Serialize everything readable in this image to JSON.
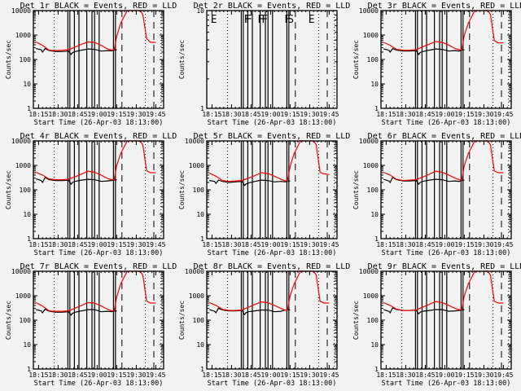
{
  "chart_data": [
    {
      "type": "line",
      "title": "Det 1r BLACK = Events, RED = LLD",
      "xlabel": "Start Time (26-Apr-03 18:13:00)",
      "ylabel": "Counts/sec",
      "yscale": "log",
      "ylim": [
        1,
        10000
      ],
      "ytick_labels": [
        "1",
        "10",
        "100",
        "1000",
        "10000"
      ],
      "xlim_minutes": [
        -2,
        98
      ],
      "xtick_labels": [
        "18:15",
        "18:30",
        "18:45",
        "19:00",
        "19:15",
        "19:30",
        "19:45"
      ],
      "markers": [
        "",
        "",
        "",
        "",
        "",
        "",
        "",
        "",
        "",
        "",
        "",
        "",
        ""
      ],
      "series": [
        {
          "name": "Events",
          "color": "#000000",
          "x": [
            0,
            4,
            5,
            7,
            10,
            15,
            20,
            25,
            27,
            28,
            30,
            35,
            40,
            45,
            50,
            55,
            58,
            60,
            62
          ],
          "y": [
            280,
            250,
            200,
            280,
            230,
            210,
            210,
            220,
            160,
            190,
            210,
            240,
            270,
            260,
            220,
            230,
            225,
            240,
            250
          ]
        },
        {
          "name": "LLD",
          "color": "#ff0000",
          "x": [
            0,
            5,
            10,
            15,
            20,
            25,
            30,
            35,
            40,
            45,
            50,
            55,
            58,
            60,
            62,
            65,
            70,
            75,
            78,
            80,
            82,
            85,
            88,
            92
          ],
          "y": [
            520,
            380,
            240,
            230,
            240,
            250,
            320,
            420,
            520,
            500,
            380,
            270,
            240,
            250,
            900,
            3000,
            10000,
            10000,
            10000,
            10000,
            7000,
            700,
            500,
            500
          ]
        }
      ]
    },
    {
      "type": "line",
      "title": "Det 2r BLACK = Events, RED = LLD",
      "xlabel": "Start Time (26-Apr-03 18:13:00)",
      "ylabel": "Counts/sec",
      "yscale": "log",
      "ylim": [
        1,
        10
      ],
      "ytick_labels": [
        "1",
        "10"
      ],
      "xlim_minutes": [
        -2,
        98
      ],
      "xtick_labels": [
        "18:15",
        "18:30",
        "18:45",
        "19:00",
        "19:15",
        "19:30",
        "19:45"
      ],
      "markers": [
        "E",
        "F",
        "F",
        "F",
        "F",
        "F",
        "S",
        "E"
      ],
      "series": []
    },
    {
      "type": "line",
      "title": "Det 3r BLACK = Events, RED = LLD",
      "xlabel": "Start Time (26-Apr-03 18:13:00)",
      "ylabel": "Counts/sec",
      "yscale": "log",
      "ylim": [
        1,
        10000
      ],
      "ytick_labels": [
        "1",
        "10",
        "100",
        "1000",
        "10000"
      ],
      "xlim_minutes": [
        -2,
        98
      ],
      "xtick_labels": [
        "18:15",
        "18:30",
        "18:45",
        "19:00",
        "19:15",
        "19:30",
        "19:45"
      ],
      "markers": [],
      "series": [
        {
          "name": "Events",
          "color": "#000000",
          "x": [
            0,
            4,
            5,
            7,
            10,
            15,
            20,
            25,
            27,
            28,
            30,
            35,
            40,
            45,
            50,
            55,
            58,
            60,
            62
          ],
          "y": [
            270,
            240,
            200,
            280,
            240,
            220,
            220,
            230,
            160,
            190,
            210,
            240,
            270,
            260,
            220,
            230,
            220,
            240,
            250
          ]
        },
        {
          "name": "LLD",
          "color": "#ff0000",
          "x": [
            0,
            5,
            10,
            15,
            20,
            25,
            30,
            35,
            40,
            45,
            50,
            55,
            58,
            60,
            62,
            65,
            70,
            75,
            78,
            80,
            82,
            85,
            88,
            92
          ],
          "y": [
            500,
            380,
            260,
            240,
            240,
            250,
            330,
            420,
            540,
            500,
            390,
            280,
            250,
            250,
            1000,
            3000,
            10000,
            10000,
            10000,
            10000,
            7000,
            600,
            480,
            480
          ]
        }
      ]
    },
    {
      "type": "line",
      "title": "Det 4r BLACK = Events, RED = LLD",
      "xlabel": "Start Time (26-Apr-03 18:13:00)",
      "ylabel": "Counts/sec",
      "yscale": "log",
      "ylim": [
        1,
        10000
      ],
      "ytick_labels": [
        "1",
        "10",
        "100",
        "1000",
        "10000"
      ],
      "xlim_minutes": [
        -2,
        98
      ],
      "xtick_labels": [
        "18:15",
        "18:30",
        "18:45",
        "19:00",
        "19:15",
        "19:30",
        "19:45"
      ],
      "markers": [],
      "series": [
        {
          "name": "Events",
          "color": "#000000",
          "x": [
            0,
            4,
            5,
            7,
            10,
            15,
            20,
            25,
            27,
            28,
            30,
            35,
            40,
            45,
            50,
            55,
            58,
            60,
            62
          ],
          "y": [
            280,
            240,
            200,
            320,
            260,
            240,
            240,
            250,
            170,
            200,
            220,
            250,
            270,
            260,
            220,
            230,
            240,
            250,
            260
          ]
        },
        {
          "name": "LLD",
          "color": "#ff0000",
          "x": [
            0,
            5,
            10,
            15,
            20,
            25,
            30,
            35,
            40,
            45,
            50,
            55,
            58,
            60,
            62,
            65,
            70,
            75,
            78,
            80,
            82,
            85,
            88,
            92
          ],
          "y": [
            520,
            400,
            280,
            260,
            260,
            270,
            340,
            440,
            580,
            520,
            400,
            290,
            260,
            260,
            1000,
            3000,
            10000,
            10000,
            10000,
            10000,
            7000,
            600,
            500,
            500
          ]
        }
      ]
    },
    {
      "type": "line",
      "title": "Det 5r BLACK = Events, RED = LLD",
      "xlabel": "Start Time (26-Apr-03 18:13:00)",
      "ylabel": "Counts/sec",
      "yscale": "log",
      "ylim": [
        1,
        10000
      ],
      "ytick_labels": [
        "1",
        "10",
        "100",
        "1000",
        "10000"
      ],
      "xlim_minutes": [
        -2,
        98
      ],
      "xtick_labels": [
        "18:15",
        "18:30",
        "18:45",
        "19:00",
        "19:15",
        "19:30",
        "19:45"
      ],
      "markers": [],
      "series": [
        {
          "name": "Events",
          "color": "#000000",
          "x": [
            0,
            4,
            5,
            7,
            10,
            15,
            20,
            25,
            27,
            28,
            30,
            35,
            40,
            45,
            50,
            55,
            58,
            60,
            62
          ],
          "y": [
            240,
            220,
            180,
            250,
            220,
            200,
            210,
            220,
            150,
            170,
            190,
            220,
            250,
            240,
            210,
            220,
            210,
            220,
            230
          ]
        },
        {
          "name": "LLD",
          "color": "#ff0000",
          "x": [
            0,
            5,
            10,
            15,
            20,
            25,
            30,
            35,
            40,
            45,
            50,
            55,
            58,
            60,
            62,
            65,
            70,
            75,
            78,
            80,
            82,
            85,
            88,
            92
          ],
          "y": [
            480,
            360,
            240,
            220,
            230,
            240,
            300,
            380,
            500,
            460,
            360,
            270,
            230,
            240,
            900,
            3000,
            10000,
            10000,
            10000,
            10000,
            7000,
            520,
            450,
            420
          ]
        }
      ]
    },
    {
      "type": "line",
      "title": "Det 6r BLACK = Events, RED = LLD",
      "xlabel": "Start Time (26-Apr-03 18:13:00)",
      "ylabel": "Counts/sec",
      "yscale": "log",
      "ylim": [
        1,
        10000
      ],
      "ytick_labels": [
        "1",
        "10",
        "100",
        "1000",
        "10000"
      ],
      "xlim_minutes": [
        -2,
        98
      ],
      "xtick_labels": [
        "18:15",
        "18:30",
        "18:45",
        "19:00",
        "19:15",
        "19:30",
        "19:45"
      ],
      "markers": [],
      "series": [
        {
          "name": "Events",
          "color": "#000000",
          "x": [
            0,
            4,
            5,
            7,
            10,
            15,
            20,
            25,
            27,
            28,
            30,
            35,
            40,
            45,
            50,
            55,
            58,
            60,
            62
          ],
          "y": [
            270,
            230,
            200,
            320,
            260,
            230,
            230,
            240,
            170,
            200,
            220,
            250,
            270,
            260,
            220,
            230,
            220,
            240,
            250
          ]
        },
        {
          "name": "LLD",
          "color": "#ff0000",
          "x": [
            0,
            5,
            10,
            15,
            20,
            25,
            30,
            35,
            40,
            45,
            50,
            55,
            58,
            60,
            62,
            65,
            70,
            75,
            78,
            80,
            82,
            85,
            88,
            92
          ],
          "y": [
            520,
            400,
            270,
            240,
            250,
            260,
            330,
            430,
            580,
            520,
            400,
            300,
            260,
            250,
            1000,
            3000,
            10000,
            10000,
            10000,
            10000,
            7000,
            600,
            500,
            500
          ]
        }
      ]
    },
    {
      "type": "line",
      "title": "Det 7r BLACK = Events, RED = LLD",
      "xlabel": "Start Time (26-Apr-03 18:13:00)",
      "ylabel": "Counts/sec",
      "yscale": "log",
      "ylim": [
        1,
        10000
      ],
      "ytick_labels": [
        "1",
        "10",
        "100",
        "1000",
        "10000"
      ],
      "xlim_minutes": [
        -2,
        98
      ],
      "xtick_labels": [
        "18:15",
        "18:30",
        "18:45",
        "19:00",
        "19:15",
        "19:30",
        "19:45"
      ],
      "markers": [],
      "series": [
        {
          "name": "Events",
          "color": "#000000",
          "x": [
            0,
            4,
            5,
            7,
            10,
            15,
            20,
            25,
            27,
            28,
            30,
            35,
            40,
            45,
            50,
            55,
            58,
            60,
            62
          ],
          "y": [
            270,
            240,
            200,
            280,
            230,
            210,
            210,
            220,
            160,
            190,
            210,
            240,
            270,
            270,
            220,
            230,
            220,
            230,
            240
          ]
        },
        {
          "name": "LLD",
          "color": "#ff0000",
          "x": [
            0,
            5,
            10,
            15,
            20,
            25,
            30,
            35,
            40,
            45,
            50,
            55,
            58,
            60,
            62,
            65,
            70,
            75,
            78,
            80,
            82,
            85,
            88,
            92
          ],
          "y": [
            520,
            380,
            240,
            230,
            230,
            240,
            310,
            400,
            520,
            500,
            380,
            280,
            240,
            240,
            900,
            3000,
            10000,
            10000,
            10000,
            10000,
            7000,
            600,
            500,
            500
          ]
        }
      ]
    },
    {
      "type": "line",
      "title": "Det 8r BLACK = Events, RED = LLD",
      "xlabel": "Start Time (26-Apr-03 18:13:00)",
      "ylabel": "Counts/sec",
      "yscale": "log",
      "ylim": [
        1,
        10000
      ],
      "ytick_labels": [
        "1",
        "10",
        "100",
        "1000",
        "10000"
      ],
      "xlim_minutes": [
        -2,
        98
      ],
      "xtick_labels": [
        "18:15",
        "18:30",
        "18:45",
        "19:00",
        "19:15",
        "19:30",
        "19:45"
      ],
      "markers": [],
      "series": [
        {
          "name": "Events",
          "color": "#000000",
          "x": [
            0,
            4,
            5,
            7,
            10,
            15,
            20,
            25,
            27,
            28,
            30,
            35,
            40,
            45,
            50,
            55,
            58,
            60,
            62
          ],
          "y": [
            270,
            230,
            200,
            310,
            260,
            240,
            240,
            250,
            170,
            200,
            220,
            240,
            260,
            260,
            220,
            230,
            260,
            260,
            270
          ]
        },
        {
          "name": "LLD",
          "color": "#ff0000",
          "x": [
            0,
            5,
            10,
            15,
            20,
            25,
            30,
            35,
            40,
            45,
            50,
            55,
            58,
            60,
            62,
            65,
            70,
            75,
            78,
            80,
            82,
            85,
            88,
            92
          ],
          "y": [
            520,
            400,
            280,
            250,
            250,
            260,
            340,
            440,
            560,
            520,
            400,
            300,
            260,
            260,
            1000,
            3000,
            10000,
            10000,
            10000,
            10000,
            7000,
            600,
            500,
            500
          ]
        }
      ]
    },
    {
      "type": "line",
      "title": "Det 9r BLACK = Events, RED = LLD",
      "xlabel": "Start Time (26-Apr-03 18:13:00)",
      "ylabel": "Counts/sec",
      "yscale": "log",
      "ylim": [
        1,
        10000
      ],
      "ytick_labels": [
        "1",
        "10",
        "100",
        "1000",
        "10000"
      ],
      "xlim_minutes": [
        -2,
        98
      ],
      "xtick_labels": [
        "18:15",
        "18:30",
        "18:45",
        "19:00",
        "19:15",
        "19:30",
        "19:45"
      ],
      "markers": [],
      "series": [
        {
          "name": "Events",
          "color": "#000000",
          "x": [
            0,
            4,
            5,
            7,
            10,
            15,
            20,
            25,
            27,
            28,
            30,
            35,
            40,
            45,
            50,
            55,
            58,
            60,
            62
          ],
          "y": [
            270,
            230,
            200,
            320,
            270,
            250,
            250,
            260,
            180,
            210,
            230,
            250,
            270,
            270,
            230,
            240,
            250,
            260,
            270
          ]
        },
        {
          "name": "LLD",
          "color": "#ff0000",
          "x": [
            0,
            5,
            10,
            15,
            20,
            25,
            30,
            35,
            40,
            45,
            50,
            55,
            58,
            60,
            62,
            65,
            70,
            75,
            78,
            80,
            82,
            85,
            88,
            92
          ],
          "y": [
            520,
            400,
            280,
            250,
            250,
            260,
            340,
            440,
            580,
            520,
            400,
            300,
            270,
            260,
            1000,
            3000,
            10000,
            10000,
            10000,
            10000,
            7000,
            600,
            500,
            500
          ]
        }
      ]
    }
  ],
  "event_lines": {
    "solid_minutes": [
      24.5,
      26,
      29.5,
      33,
      39,
      43,
      45,
      48.5,
      59.5,
      61
    ],
    "dashed_minutes": [
      66,
      90.5
    ],
    "dotted_minutes": [
      14,
      84,
      96
    ],
    "panel2_marker_minutes": [
      1,
      26.5,
      28,
      37,
      40,
      57.5,
      60,
      76
    ]
  },
  "colors": {
    "background": "#f2f2f2",
    "axis": "#000000",
    "events": "#000000",
    "lld": "#ff0000"
  }
}
